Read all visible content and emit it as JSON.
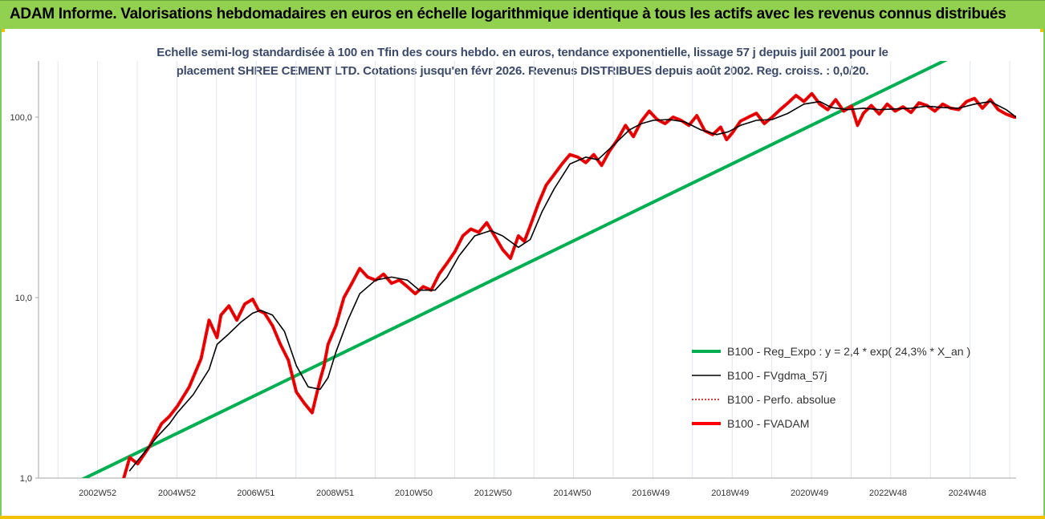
{
  "header": {
    "title": "ADAM Informe. Valorisations hebdomadaires en euros en échelle logarithmique identique à tous les actifs avec les revenus connus distribués"
  },
  "chart_data": {
    "type": "line",
    "title_line1": "Echelle semi-log standardisée à 100 en Tfin des cours hebdo. en euros, tendance exponentielle, lissage 57 j depuis juil 2001 pour le",
    "title_line2": "placement SHREE CEMENT LTD. Cotations jusqu'en févr 2026. Revenus DISTRIBUES depuis août 2002. Reg. croiss. : 0,0/20.",
    "yscale": "log",
    "ylim": [
      1,
      200
    ],
    "xlim": [
      2001.5,
      2026.15
    ],
    "y_ticks": [
      {
        "value": 1,
        "label": "1,0"
      },
      {
        "value": 10,
        "label": "10,0"
      },
      {
        "value": 100,
        "label": "100,0"
      }
    ],
    "x_ticks": [
      {
        "value": 2002.99,
        "label": "2002W52"
      },
      {
        "value": 2004.99,
        "label": "2004W52"
      },
      {
        "value": 2006.98,
        "label": "2006W51"
      },
      {
        "value": 2008.98,
        "label": "2008W51"
      },
      {
        "value": 2010.96,
        "label": "2010W50"
      },
      {
        "value": 2012.96,
        "label": "2012W50"
      },
      {
        "value": 2014.96,
        "label": "2014W50"
      },
      {
        "value": 2016.94,
        "label": "2016W49"
      },
      {
        "value": 2018.94,
        "label": "2018W49"
      },
      {
        "value": 2020.94,
        "label": "2020W49"
      },
      {
        "value": 2022.92,
        "label": "2022W48"
      },
      {
        "value": 2024.92,
        "label": "2024W48"
      }
    ],
    "legend_position": "bottom-right",
    "grid": "vertical",
    "series": [
      {
        "name": "B100 - Reg_Expo : y = 2,4 * exp( 24,3% *  X_an )",
        "color": "#00b050",
        "style": "solid-thick",
        "x": [
          2001.5,
          2026.15
        ],
        "y": [
          0.75,
          320
        ]
      },
      {
        "name": "B100 - FVgdma_57j",
        "color": "#000000",
        "style": "solid-thin",
        "x": [
          2003.8,
          2004.0,
          2004.5,
          2004.8,
          2005.0,
          2005.4,
          2005.8,
          2006.0,
          2006.3,
          2006.6,
          2006.9,
          2007.1,
          2007.4,
          2007.7,
          2008.0,
          2008.3,
          2008.6,
          2008.8,
          2009.0,
          2009.3,
          2009.6,
          2010.0,
          2010.4,
          2010.8,
          2011.1,
          2011.5,
          2011.8,
          2012.1,
          2012.5,
          2012.9,
          2013.2,
          2013.6,
          2013.9,
          2014.2,
          2014.5,
          2014.9,
          2015.3,
          2015.6,
          2016.0,
          2016.4,
          2016.7,
          2017.0,
          2017.4,
          2017.8,
          2018.2,
          2018.6,
          2018.9,
          2019.2,
          2019.6,
          2020.0,
          2020.4,
          2020.8,
          2021.2,
          2021.5,
          2021.9,
          2022.3,
          2022.7,
          2023.1,
          2023.5,
          2023.9,
          2024.3,
          2024.7,
          2025.1,
          2025.5,
          2025.9,
          2026.15
        ],
        "y": [
          1.1,
          1.25,
          1.7,
          2.0,
          2.3,
          2.9,
          4.0,
          5.5,
          6.3,
          7.3,
          8.2,
          8.5,
          8.0,
          6.5,
          4.2,
          3.2,
          3.1,
          3.6,
          5.0,
          7.5,
          10.5,
          12.5,
          13.0,
          12.5,
          11.0,
          11.0,
          13.0,
          17.0,
          22.0,
          23.5,
          22.0,
          19.0,
          21.0,
          30.0,
          40.0,
          55.0,
          60.0,
          58.0,
          70.0,
          85.0,
          92.0,
          96.0,
          97.0,
          94.0,
          85.0,
          80.0,
          83.0,
          90.0,
          96.0,
          97.0,
          105.0,
          118.0,
          122.0,
          113.0,
          110.0,
          112.0,
          110.0,
          111.0,
          112.0,
          115.0,
          113.0,
          112.0,
          118.0,
          122.0,
          110.0,
          100.0
        ]
      },
      {
        "name": "B100 - Perfo. absolue",
        "color": "#c00000",
        "style": "dotted",
        "x": [
          2003.65,
          2003.8,
          2004.0,
          2004.3,
          2004.6,
          2004.8,
          2005.0,
          2005.3,
          2005.6,
          2005.8,
          2006.0,
          2006.1,
          2006.3,
          2006.5,
          2006.7,
          2006.9,
          2007.05,
          2007.2,
          2007.4,
          2007.6,
          2007.8,
          2008.0,
          2008.2,
          2008.4,
          2008.6,
          2008.7,
          2008.8,
          2009.0,
          2009.2,
          2009.4,
          2009.6,
          2009.8,
          2010.0,
          2010.2,
          2010.4,
          2010.6,
          2010.8,
          2011.0,
          2011.2,
          2011.4,
          2011.6,
          2011.8,
          2012.0,
          2012.2,
          2012.4,
          2012.6,
          2012.8,
          2013.0,
          2013.2,
          2013.4,
          2013.6,
          2013.75,
          2013.9,
          2014.1,
          2014.3,
          2014.5,
          2014.7,
          2014.9,
          2015.1,
          2015.3,
          2015.5,
          2015.7,
          2015.9,
          2016.1,
          2016.3,
          2016.5,
          2016.7,
          2016.9,
          2017.1,
          2017.3,
          2017.5,
          2017.7,
          2017.9,
          2018.1,
          2018.3,
          2018.5,
          2018.7,
          2018.85,
          2019.0,
          2019.2,
          2019.4,
          2019.6,
          2019.8,
          2020.0,
          2020.2,
          2020.4,
          2020.6,
          2020.8,
          2021.0,
          2021.2,
          2021.4,
          2021.6,
          2021.8,
          2022.0,
          2022.15,
          2022.3,
          2022.5,
          2022.7,
          2022.9,
          2023.1,
          2023.3,
          2023.5,
          2023.7,
          2023.9,
          2024.1,
          2024.3,
          2024.5,
          2024.7,
          2024.9,
          2025.1,
          2025.3,
          2025.5,
          2025.7,
          2025.9,
          2026.1,
          2026.15
        ],
        "y": [
          1.0,
          1.3,
          1.2,
          1.5,
          2.0,
          2.2,
          2.5,
          3.2,
          4.6,
          7.5,
          6.0,
          8.0,
          9.0,
          7.5,
          9.2,
          9.8,
          8.5,
          8.2,
          7.0,
          5.5,
          4.5,
          3.0,
          2.6,
          2.3,
          3.5,
          4.2,
          5.5,
          7.0,
          10.0,
          12.0,
          14.5,
          13.0,
          12.5,
          13.5,
          12.0,
          12.5,
          11.5,
          10.5,
          11.5,
          11.0,
          13.5,
          15.5,
          18.0,
          22.0,
          24.0,
          23.0,
          26.0,
          22.0,
          18.5,
          16.5,
          22.0,
          20.5,
          25.0,
          33.0,
          42.0,
          48.0,
          55.0,
          62.0,
          60.0,
          56.0,
          62.0,
          54.0,
          65.0,
          75.0,
          90.0,
          78.0,
          95.0,
          108.0,
          97.0,
          92.0,
          100.0,
          96.0,
          90.0,
          102.0,
          84.0,
          80.0,
          88.0,
          75.0,
          82.0,
          95.0,
          100.0,
          105.0,
          92.0,
          100.0,
          110.0,
          120.0,
          132.0,
          122.0,
          135.0,
          118.0,
          110.0,
          125.0,
          108.0,
          115.0,
          90.0,
          105.0,
          116.0,
          104.0,
          118.0,
          108.0,
          114.0,
          106.0,
          120.0,
          116.0,
          108.0,
          118.0,
          112.0,
          110.0,
          122.0,
          127.0,
          112.0,
          125.0,
          110.0,
          104.0,
          100.0,
          100.0
        ]
      },
      {
        "name": "B100 - FVADAM",
        "color": "#ff0000",
        "style": "solid-thick",
        "x": [
          2003.65,
          2003.8,
          2004.0,
          2004.3,
          2004.6,
          2004.8,
          2005.0,
          2005.3,
          2005.6,
          2005.8,
          2006.0,
          2006.1,
          2006.3,
          2006.5,
          2006.7,
          2006.9,
          2007.05,
          2007.2,
          2007.4,
          2007.6,
          2007.8,
          2008.0,
          2008.2,
          2008.4,
          2008.6,
          2008.7,
          2008.8,
          2009.0,
          2009.2,
          2009.4,
          2009.6,
          2009.8,
          2010.0,
          2010.2,
          2010.4,
          2010.6,
          2010.8,
          2011.0,
          2011.2,
          2011.4,
          2011.6,
          2011.8,
          2012.0,
          2012.2,
          2012.4,
          2012.6,
          2012.8,
          2013.0,
          2013.2,
          2013.4,
          2013.6,
          2013.75,
          2013.9,
          2014.1,
          2014.3,
          2014.5,
          2014.7,
          2014.9,
          2015.1,
          2015.3,
          2015.5,
          2015.7,
          2015.9,
          2016.1,
          2016.3,
          2016.5,
          2016.7,
          2016.9,
          2017.1,
          2017.3,
          2017.5,
          2017.7,
          2017.9,
          2018.1,
          2018.3,
          2018.5,
          2018.7,
          2018.85,
          2019.0,
          2019.2,
          2019.4,
          2019.6,
          2019.8,
          2020.0,
          2020.2,
          2020.4,
          2020.6,
          2020.8,
          2021.0,
          2021.2,
          2021.4,
          2021.6,
          2021.8,
          2022.0,
          2022.15,
          2022.3,
          2022.5,
          2022.7,
          2022.9,
          2023.1,
          2023.3,
          2023.5,
          2023.7,
          2023.9,
          2024.1,
          2024.3,
          2024.5,
          2024.7,
          2024.9,
          2025.1,
          2025.3,
          2025.5,
          2025.7,
          2025.9,
          2026.1,
          2026.15
        ],
        "y": [
          1.0,
          1.3,
          1.2,
          1.5,
          2.0,
          2.2,
          2.5,
          3.2,
          4.6,
          7.5,
          6.0,
          8.0,
          9.0,
          7.5,
          9.2,
          9.8,
          8.5,
          8.2,
          7.0,
          5.5,
          4.5,
          3.0,
          2.6,
          2.3,
          3.5,
          4.2,
          5.5,
          7.0,
          10.0,
          12.0,
          14.5,
          13.0,
          12.5,
          13.5,
          12.0,
          12.5,
          11.5,
          10.5,
          11.5,
          11.0,
          13.5,
          15.5,
          18.0,
          22.0,
          24.0,
          23.0,
          26.0,
          22.0,
          18.5,
          16.5,
          22.0,
          20.5,
          25.0,
          33.0,
          42.0,
          48.0,
          55.0,
          62.0,
          60.0,
          56.0,
          62.0,
          54.0,
          65.0,
          75.0,
          90.0,
          78.0,
          95.0,
          108.0,
          97.0,
          92.0,
          100.0,
          96.0,
          90.0,
          102.0,
          84.0,
          80.0,
          88.0,
          75.0,
          82.0,
          95.0,
          100.0,
          105.0,
          92.0,
          100.0,
          110.0,
          120.0,
          132.0,
          122.0,
          135.0,
          118.0,
          110.0,
          125.0,
          108.0,
          115.0,
          90.0,
          105.0,
          116.0,
          104.0,
          118.0,
          108.0,
          114.0,
          106.0,
          120.0,
          116.0,
          108.0,
          118.0,
          112.0,
          110.0,
          122.0,
          127.0,
          112.0,
          125.0,
          110.0,
          104.0,
          100.0,
          100.0
        ]
      }
    ]
  }
}
